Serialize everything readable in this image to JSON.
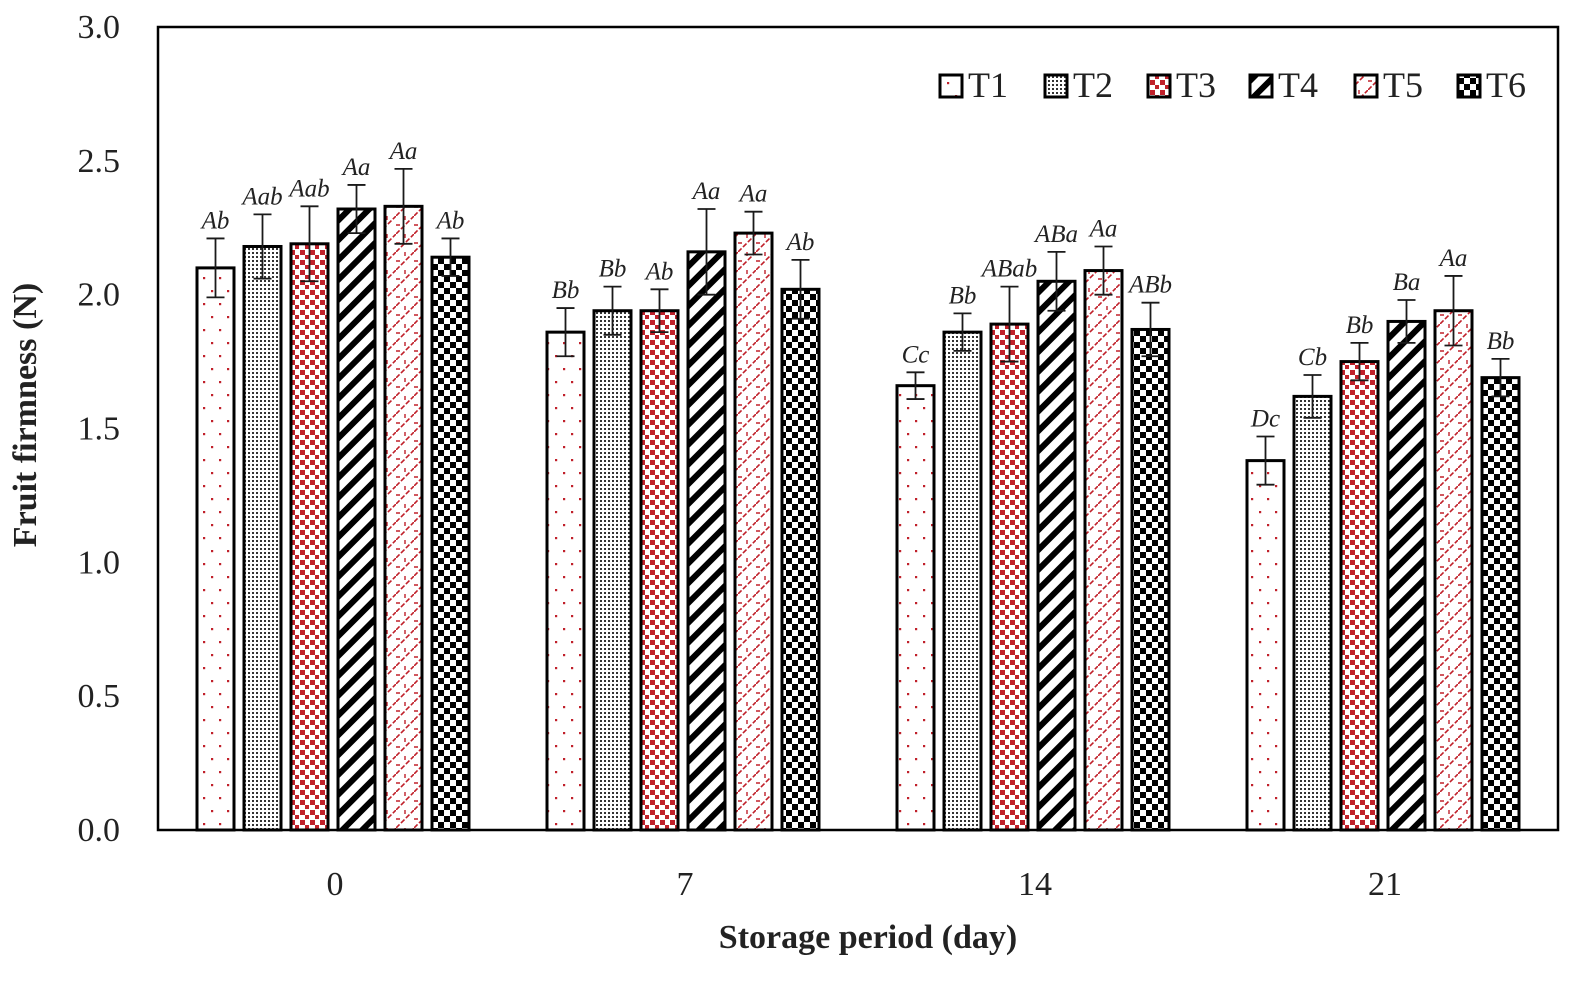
{
  "chart_data": {
    "type": "bar",
    "title": "",
    "xlabel": "Storage period (day)",
    "ylabel": "Fruit firmness (N)",
    "ylim": [
      0,
      3.0
    ],
    "yticks": [
      "0.0",
      "0.5",
      "1.0",
      "1.5",
      "2.0",
      "2.5",
      "3.0"
    ],
    "categories": [
      "0",
      "7",
      "14",
      "21"
    ],
    "legend_position": "top-right",
    "series": [
      {
        "name": "T1",
        "pattern": "dots",
        "color": "#c0202a",
        "values": [
          2.1,
          1.86,
          1.66,
          1.38
        ],
        "errors": [
          0.11,
          0.09,
          0.05,
          0.09
        ],
        "labels": [
          "Ab",
          "Bb",
          "Cc",
          "Dc"
        ]
      },
      {
        "name": "T2",
        "pattern": "fine-dots",
        "color": "#222222",
        "values": [
          2.18,
          1.94,
          1.86,
          1.62
        ],
        "errors": [
          0.12,
          0.09,
          0.07,
          0.08
        ],
        "labels": [
          "Aab",
          "Bb",
          "Bb",
          "Cb"
        ]
      },
      {
        "name": "T3",
        "pattern": "squares",
        "color": "#c0202a",
        "values": [
          2.19,
          1.94,
          1.89,
          1.75
        ],
        "errors": [
          0.14,
          0.08,
          0.14,
          0.07
        ],
        "labels": [
          "Aab",
          "Ab",
          "ABab",
          "Bb"
        ]
      },
      {
        "name": "T4",
        "pattern": "diagonal",
        "color": "#000000",
        "values": [
          2.32,
          2.16,
          2.05,
          1.9
        ],
        "errors": [
          0.09,
          0.16,
          0.11,
          0.08
        ],
        "labels": [
          "Aa",
          "Aa",
          "ABa",
          "Ba"
        ]
      },
      {
        "name": "T5",
        "pattern": "wave",
        "color": "#c0202a",
        "values": [
          2.33,
          2.23,
          2.09,
          1.94
        ],
        "errors": [
          0.14,
          0.08,
          0.09,
          0.13
        ],
        "labels": [
          "Aa",
          "Aa",
          "Aa",
          "Aa"
        ]
      },
      {
        "name": "T6",
        "pattern": "checker",
        "color": "#000000",
        "values": [
          2.14,
          2.02,
          1.87,
          1.69
        ],
        "errors": [
          0.07,
          0.11,
          0.1,
          0.07
        ],
        "labels": [
          "Ab",
          "Ab",
          "ABb",
          "Bb"
        ]
      }
    ]
  }
}
